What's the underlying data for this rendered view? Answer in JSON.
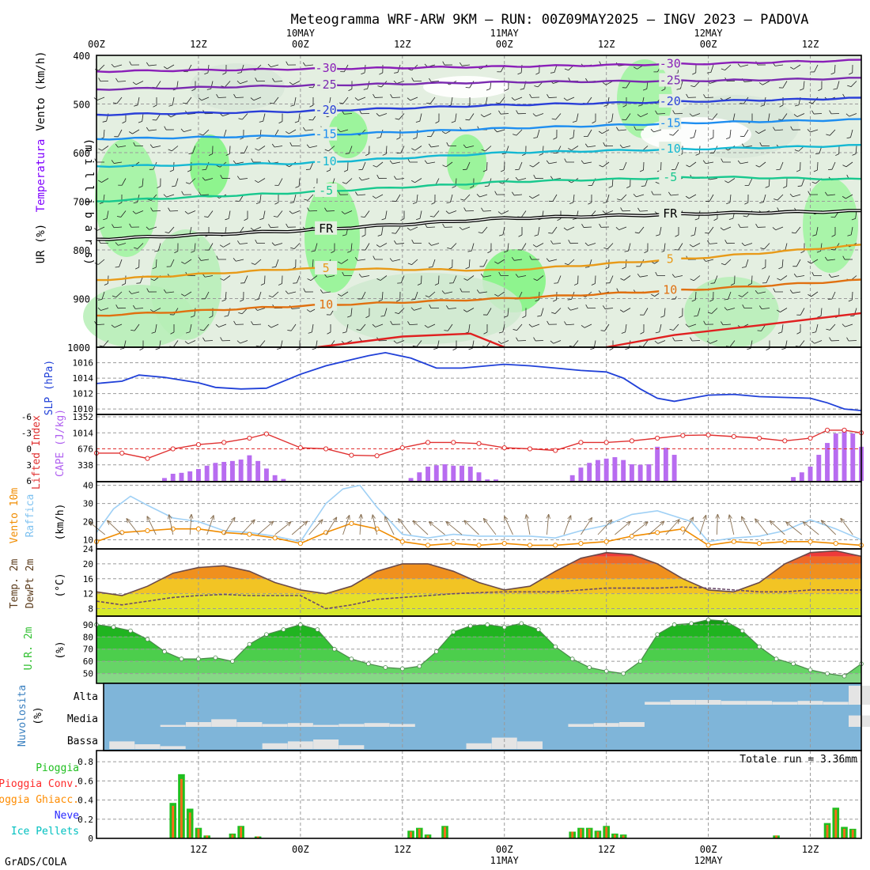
{
  "header": {
    "title": "Meteogramma WRF-ARW 9KM – RUN: 00Z09MAY2025 – INGV 2023 – PADOVA",
    "credit": "GrADS/COLA"
  },
  "time_axis": {
    "top_ticks": [
      {
        "h": 0,
        "label": "00Z"
      },
      {
        "h": 12,
        "label": "12Z"
      },
      {
        "h": 24,
        "label": "00Z",
        "date": "10MAY"
      },
      {
        "h": 36,
        "label": "12Z"
      },
      {
        "h": 48,
        "label": "00Z",
        "date": "11MAY"
      },
      {
        "h": 60,
        "label": "12Z"
      },
      {
        "h": 72,
        "label": "00Z",
        "date": "12MAY"
      },
      {
        "h": 84,
        "label": "12Z"
      }
    ],
    "bottom_ticks": [
      {
        "h": 12,
        "label": "12Z"
      },
      {
        "h": 24,
        "label": "00Z"
      },
      {
        "h": 36,
        "label": "12Z"
      },
      {
        "h": 48,
        "label": "00Z",
        "date": "11MAY"
      },
      {
        "h": 60,
        "label": "12Z"
      },
      {
        "h": 72,
        "label": "00Z",
        "date": "12MAY"
      },
      {
        "h": 84,
        "label": "12Z"
      }
    ]
  },
  "panel_labels": {
    "upper": [
      {
        "text": "Vento (km/h)",
        "color": "#000000"
      },
      {
        "text": "Temperatura",
        "color": "#7f00ff"
      },
      {
        "text": "UR (%)",
        "color": "#000000"
      }
    ],
    "upper_axis": "(m i l l i b a r s)",
    "slp": "SLP (hPa)",
    "cape_a": "Lifted Index",
    "cape_b": "CAPE (J/kg)",
    "wind_a": "Vento 10m",
    "wind_b": "Raffica",
    "wind_unit": "(km/h)",
    "temp_a": "Temp. 2m",
    "temp_b": "DewPt 2m",
    "temp_unit": "(°C)",
    "rh_a": "U.R. 2m",
    "rh_unit": "(%)",
    "cloud_a": "Nuvolosita",
    "cloud_unit": "(%)",
    "cloud_levels": [
      "Alta",
      "Media",
      "Bassa"
    ],
    "precip_legend": [
      {
        "text": "Pioggia",
        "color": "#1fbf1f"
      },
      {
        "text": "Pioggia Conv.",
        "color": "#ff2a2a"
      },
      {
        "text": "Pioggia Ghiacc.",
        "color": "#ff8c00"
      },
      {
        "text": "Neve",
        "color": "#2a2aff"
      },
      {
        "text": "Ice Pellets",
        "color": "#00c0c0"
      }
    ],
    "precip_total": "Totale run = 3.36mm"
  },
  "chart_data": [
    {
      "type": "line",
      "panel": "upper-air cross-section",
      "ylabel": "millibars",
      "ylim": [
        1000,
        400
      ],
      "yticks": [
        400,
        500,
        600,
        700,
        800,
        900,
        1000
      ],
      "xlim_hours": [
        0,
        90
      ],
      "isotherms": [
        {
          "label": "-30",
          "color": "#8a1fb8",
          "x": [
            0,
            24,
            48,
            72,
            90
          ],
          "y": [
            433,
            428,
            423,
            417,
            410
          ]
        },
        {
          "label": "-25",
          "color": "#7a2ab0",
          "x": [
            0,
            24,
            48,
            72,
            90
          ],
          "y": [
            470,
            462,
            455,
            452,
            447
          ]
        },
        {
          "label": "-20",
          "color": "#2a3fd8",
          "x": [
            0,
            24,
            48,
            72,
            90
          ],
          "y": [
            522,
            515,
            502,
            494,
            488
          ]
        },
        {
          "label": "-15",
          "color": "#1e8ef0",
          "x": [
            0,
            24,
            48,
            72,
            90
          ],
          "y": [
            572,
            565,
            550,
            538,
            532
          ]
        },
        {
          "label": "-10",
          "color": "#14b8d2",
          "x": [
            0,
            24,
            48,
            72,
            90
          ],
          "y": [
            628,
            622,
            600,
            592,
            585
          ]
        },
        {
          "label": "-5",
          "color": "#18c88e",
          "x": [
            0,
            24,
            48,
            72,
            90
          ],
          "y": [
            700,
            682,
            660,
            650,
            655
          ]
        },
        {
          "label": "FR",
          "color": "#000000",
          "x": [
            0,
            24,
            48,
            72,
            90
          ],
          "y": [
            778,
            760,
            735,
            725,
            720
          ]
        },
        {
          "label": "5",
          "color": "#e89a18",
          "x": [
            0,
            24,
            48,
            72,
            90
          ],
          "y": [
            862,
            838,
            842,
            815,
            790
          ]
        },
        {
          "label": "10",
          "color": "#e07010",
          "x": [
            0,
            24,
            48,
            72,
            90
          ],
          "y": [
            935,
            915,
            900,
            880,
            862
          ]
        }
      ]
    },
    {
      "type": "line",
      "panel": "SLP",
      "ylabel": "SLP (hPa)",
      "ylim": [
        1009.6,
        1017.6
      ],
      "yticks": [
        1010,
        1012,
        1014,
        1016
      ],
      "x": [
        0,
        3,
        5,
        8,
        12,
        14,
        17,
        20,
        24,
        27,
        30,
        32,
        34,
        37,
        40,
        43,
        46,
        48,
        51,
        54,
        57,
        60,
        62,
        64,
        66,
        68,
        70,
        72,
        75,
        78,
        81,
        84,
        86,
        88,
        90
      ],
      "values": [
        1013.3,
        1013.6,
        1014.4,
        1014.1,
        1013.4,
        1012.8,
        1012.6,
        1012.7,
        1014.5,
        1015.6,
        1016.4,
        1016.9,
        1017.3,
        1016.6,
        1015.3,
        1015.3,
        1015.6,
        1015.8,
        1015.6,
        1015.3,
        1015.0,
        1014.8,
        1014.0,
        1012.6,
        1011.4,
        1011.0,
        1011.4,
        1011.8,
        1011.9,
        1011.6,
        1011.5,
        1011.4,
        1010.8,
        1010.0,
        1009.8
      ]
    },
    {
      "type": "bar",
      "panel": "CAPE / Lifted Index",
      "ylabel": "CAPE (J/kg)",
      "ylim": [
        0,
        1352
      ],
      "yticks": [
        338,
        676,
        1014,
        1352
      ],
      "li_ylabel": "Lifted Index",
      "li_ylim": [
        6,
        -6
      ],
      "li_yticks": [
        -6,
        -3,
        0,
        3,
        6
      ],
      "cape_x": [
        8,
        9,
        10,
        11,
        12,
        13,
        14,
        15,
        16,
        17,
        18,
        19,
        20,
        21,
        22,
        37,
        38,
        39,
        40,
        41,
        42,
        43,
        44,
        45,
        46,
        47,
        56,
        57,
        58,
        59,
        60,
        61,
        62,
        63,
        64,
        65,
        66,
        67,
        68,
        82,
        83,
        84,
        85,
        86,
        87,
        88,
        89,
        90
      ],
      "cape_values": [
        60,
        150,
        170,
        200,
        250,
        320,
        380,
        400,
        420,
        450,
        540,
        420,
        260,
        120,
        40,
        60,
        180,
        300,
        330,
        350,
        320,
        320,
        300,
        180,
        30,
        30,
        120,
        280,
        380,
        440,
        470,
        500,
        440,
        350,
        340,
        350,
        720,
        700,
        550,
        80,
        180,
        300,
        550,
        800,
        1000,
        1100,
        1000,
        720
      ],
      "li_x": [
        0,
        3,
        6,
        9,
        12,
        15,
        18,
        20,
        24,
        27,
        30,
        33,
        36,
        39,
        42,
        45,
        48,
        51,
        54,
        57,
        60,
        63,
        66,
        69,
        72,
        75,
        78,
        81,
        84,
        86,
        88,
        90
      ],
      "li_values": [
        0.8,
        0.8,
        1.8,
        0.0,
        -0.8,
        -1.2,
        -2.0,
        -2.8,
        -0.2,
        0.0,
        1.2,
        1.3,
        -0.2,
        -1.2,
        -1.2,
        -1.0,
        -0.2,
        0.0,
        0.3,
        -1.2,
        -1.2,
        -1.5,
        -2.0,
        -2.5,
        -2.6,
        -2.3,
        -2.0,
        -1.5,
        -2.0,
        -3.5,
        -3.5,
        -3.0
      ]
    },
    {
      "type": "line",
      "panel": "10m wind and gust",
      "ylabel": "(km/h)",
      "ylim": [
        5,
        42
      ],
      "yticks": [
        10,
        20,
        30,
        40
      ],
      "series": [
        {
          "name": "Vento 10m",
          "color": "#f08c00",
          "x": [
            0,
            3,
            6,
            9,
            12,
            15,
            18,
            21,
            24,
            27,
            30,
            33,
            36,
            39,
            42,
            45,
            48,
            51,
            54,
            57,
            60,
            63,
            66,
            69,
            72,
            75,
            78,
            81,
            84,
            87,
            90
          ],
          "values": [
            9,
            14,
            15,
            16,
            16,
            14,
            13,
            11,
            8,
            14,
            19,
            16,
            9,
            7,
            8,
            7,
            8,
            7,
            7,
            8,
            9,
            12,
            14,
            16,
            7,
            9,
            8,
            9,
            9,
            8,
            7
          ]
        },
        {
          "name": "Raffica",
          "color": "#9fd0f5",
          "x": [
            0,
            2,
            4,
            6,
            9,
            12,
            15,
            18,
            21,
            24,
            27,
            29,
            31,
            33,
            36,
            39,
            42,
            45,
            48,
            51,
            54,
            57,
            60,
            63,
            66,
            68,
            70,
            72,
            75,
            78,
            81,
            84,
            87,
            90
          ],
          "values": [
            14,
            27,
            34,
            29,
            22,
            20,
            15,
            14,
            12,
            9,
            30,
            38,
            40,
            28,
            13,
            11,
            13,
            12,
            12,
            12,
            11,
            15,
            18,
            24,
            26,
            23,
            20,
            9,
            11,
            12,
            15,
            21,
            16,
            10
          ]
        }
      ]
    },
    {
      "type": "area",
      "panel": "2m temperature and dew point",
      "ylabel": "(°C)",
      "ylim": [
        6,
        24
      ],
      "yticks": [
        8,
        12,
        16,
        20,
        24
      ],
      "series": [
        {
          "name": "Temp. 2m",
          "x": [
            0,
            3,
            6,
            9,
            12,
            15,
            18,
            21,
            24,
            27,
            30,
            33,
            36,
            39,
            42,
            45,
            48,
            51,
            54,
            57,
            60,
            63,
            66,
            69,
            72,
            75,
            78,
            81,
            84,
            87,
            90
          ],
          "values": [
            12.5,
            11.5,
            14,
            17.5,
            19,
            19.5,
            18,
            15,
            13,
            12,
            14,
            18,
            20,
            20,
            18,
            15,
            13,
            14,
            18,
            21.5,
            23,
            22.5,
            20,
            16,
            13,
            12.5,
            15,
            20,
            23,
            23.5,
            22
          ]
        },
        {
          "name": "DewPt 2m",
          "x": [
            0,
            3,
            6,
            9,
            12,
            15,
            18,
            21,
            24,
            27,
            30,
            33,
            36,
            39,
            42,
            45,
            48,
            51,
            54,
            57,
            60,
            63,
            66,
            69,
            72,
            75,
            78,
            81,
            84,
            87,
            90
          ],
          "values": [
            10,
            9,
            10,
            11,
            11.5,
            11.8,
            11.5,
            11.5,
            11.5,
            8,
            9,
            10.5,
            11,
            11.5,
            12,
            12.3,
            12.5,
            12.5,
            12.5,
            13,
            13.5,
            13.5,
            13.5,
            13.8,
            13.5,
            13,
            12.5,
            12.5,
            13,
            13,
            13
          ]
        }
      ]
    },
    {
      "type": "area",
      "panel": "2m relative humidity",
      "ylabel": "(%)",
      "ylim": [
        42,
        97
      ],
      "yticks": [
        50,
        60,
        70,
        80,
        90
      ],
      "x": [
        0,
        2,
        4,
        6,
        8,
        10,
        12,
        14,
        16,
        18,
        20,
        22,
        24,
        26,
        28,
        30,
        32,
        34,
        36,
        38,
        40,
        42,
        44,
        46,
        48,
        50,
        52,
        54,
        56,
        58,
        60,
        62,
        64,
        66,
        68,
        70,
        72,
        74,
        76,
        78,
        80,
        82,
        84,
        86,
        88,
        90
      ],
      "values": [
        90,
        88,
        85,
        78,
        68,
        62,
        62,
        63,
        60,
        74,
        82,
        86,
        90,
        86,
        70,
        62,
        58,
        55,
        54,
        56,
        68,
        84,
        89,
        90,
        88,
        91,
        86,
        72,
        62,
        55,
        52,
        50,
        60,
        82,
        90,
        91,
        94,
        93,
        85,
        72,
        62,
        58,
        53,
        50,
        48,
        58
      ]
    },
    {
      "type": "area",
      "panel": "Nuvolosita",
      "ylabel": "(%)",
      "levels": [
        "Alta",
        "Media",
        "Bassa"
      ],
      "x": [
        0,
        3,
        6,
        9,
        12,
        15,
        18,
        21,
        24,
        27,
        30,
        33,
        36,
        39,
        42,
        45,
        48,
        51,
        54,
        57,
        60,
        63,
        66,
        69,
        72,
        75,
        78,
        81,
        84,
        87,
        90
      ],
      "alta": [
        0,
        0,
        0,
        0,
        0,
        0,
        0,
        0,
        0,
        0,
        0,
        0,
        0,
        0,
        0,
        0,
        0,
        0,
        0,
        0,
        0,
        0,
        15,
        25,
        25,
        20,
        20,
        15,
        20,
        15,
        100
      ],
      "media": [
        0,
        0,
        0,
        10,
        25,
        40,
        25,
        15,
        20,
        10,
        15,
        20,
        15,
        0,
        0,
        0,
        0,
        0,
        0,
        15,
        20,
        25,
        0,
        0,
        0,
        0,
        0,
        0,
        0,
        0,
        60
      ],
      "bassa": [
        0,
        40,
        25,
        15,
        0,
        0,
        0,
        30,
        40,
        50,
        20,
        0,
        0,
        0,
        0,
        30,
        60,
        40,
        0,
        0,
        0,
        0,
        0,
        0,
        0,
        0,
        0,
        0,
        0,
        0,
        0
      ]
    },
    {
      "type": "bar",
      "panel": "Precipitation",
      "ylim": [
        0,
        0.9
      ],
      "yticks": [
        0,
        0.2,
        0.4,
        0.6,
        0.8
      ],
      "bars": [
        {
          "h": 9,
          "pioggia": 0.37,
          "conv": 0.34
        },
        {
          "h": 10,
          "pioggia": 0.67,
          "conv": 0.62
        },
        {
          "h": 11,
          "pioggia": 0.31,
          "conv": 0.27
        },
        {
          "h": 12,
          "pioggia": 0.11,
          "conv": 0.1
        },
        {
          "h": 13,
          "pioggia": 0.03,
          "conv": 0.03
        },
        {
          "h": 16,
          "pioggia": 0.05,
          "conv": 0.04
        },
        {
          "h": 17,
          "pioggia": 0.13,
          "conv": 0.12
        },
        {
          "h": 19,
          "pioggia": 0.02,
          "conv": 0.02
        },
        {
          "h": 37,
          "pioggia": 0.08,
          "conv": 0.07
        },
        {
          "h": 38,
          "pioggia": 0.11,
          "conv": 0.1
        },
        {
          "h": 39,
          "pioggia": 0.04,
          "conv": 0.03
        },
        {
          "h": 41,
          "pioggia": 0.13,
          "conv": 0.12
        },
        {
          "h": 56,
          "pioggia": 0.07,
          "conv": 0.07
        },
        {
          "h": 57,
          "pioggia": 0.11,
          "conv": 0.1
        },
        {
          "h": 58,
          "pioggia": 0.11,
          "conv": 0.1
        },
        {
          "h": 59,
          "pioggia": 0.08,
          "conv": 0.07
        },
        {
          "h": 60,
          "pioggia": 0.13,
          "conv": 0.12
        },
        {
          "h": 61,
          "pioggia": 0.05,
          "conv": 0.04
        },
        {
          "h": 62,
          "pioggia": 0.04,
          "conv": 0.03
        },
        {
          "h": 80,
          "pioggia": 0.03,
          "conv": 0.03
        },
        {
          "h": 86,
          "pioggia": 0.16,
          "conv": 0.14
        },
        {
          "h": 87,
          "pioggia": 0.32,
          "conv": 0.3
        },
        {
          "h": 88,
          "pioggia": 0.12,
          "conv": 0.1
        },
        {
          "h": 89,
          "pioggia": 0.1,
          "conv": 0.09
        }
      ]
    }
  ]
}
